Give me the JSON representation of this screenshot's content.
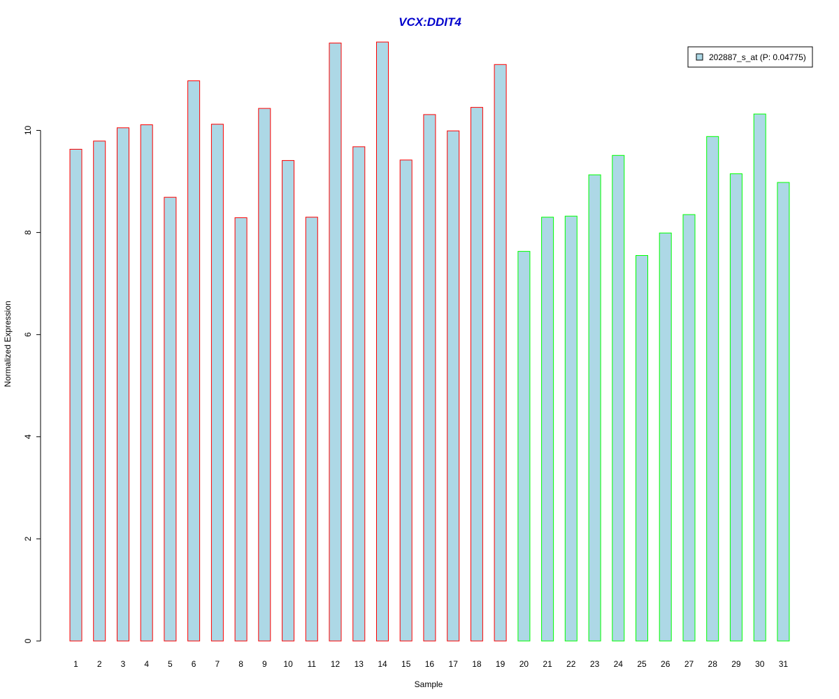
{
  "chart_data": {
    "type": "bar",
    "title": "VCX:DDIT4",
    "xlabel": "Sample",
    "ylabel": "Normalized Expression",
    "ylim": [
      0,
      12
    ],
    "yticks": [
      0,
      2,
      4,
      6,
      8,
      10
    ],
    "categories": [
      "1",
      "2",
      "3",
      "4",
      "5",
      "6",
      "7",
      "8",
      "9",
      "10",
      "11",
      "12",
      "13",
      "14",
      "15",
      "16",
      "17",
      "18",
      "19",
      "20",
      "21",
      "22",
      "23",
      "24",
      "25",
      "26",
      "27",
      "28",
      "29",
      "30",
      "31"
    ],
    "series": [
      {
        "name": "202887_s_at (P: 0.04775)",
        "values": [
          9.63,
          9.79,
          10.05,
          10.11,
          8.69,
          10.97,
          10.12,
          8.29,
          10.43,
          9.41,
          8.3,
          11.71,
          9.68,
          11.73,
          9.42,
          10.31,
          9.99,
          10.45,
          11.29,
          7.63,
          8.3,
          8.32,
          9.13,
          9.51,
          7.55,
          7.99,
          8.35,
          9.88,
          9.15,
          10.32,
          8.98
        ],
        "fill": "#ADD8E6",
        "group": [
          "red",
          "red",
          "red",
          "red",
          "red",
          "red",
          "red",
          "red",
          "red",
          "red",
          "red",
          "red",
          "red",
          "red",
          "red",
          "red",
          "red",
          "red",
          "red",
          "green",
          "green",
          "green",
          "green",
          "green",
          "green",
          "green",
          "green",
          "green",
          "green",
          "green",
          "green"
        ]
      }
    ],
    "group_colors": {
      "red": "#FF0000",
      "green": "#00FF00"
    },
    "title_color": "#0000CC",
    "legend": {
      "label": "202887_s_at (P: 0.04775)",
      "placement": "top-right"
    },
    "grid": false
  }
}
